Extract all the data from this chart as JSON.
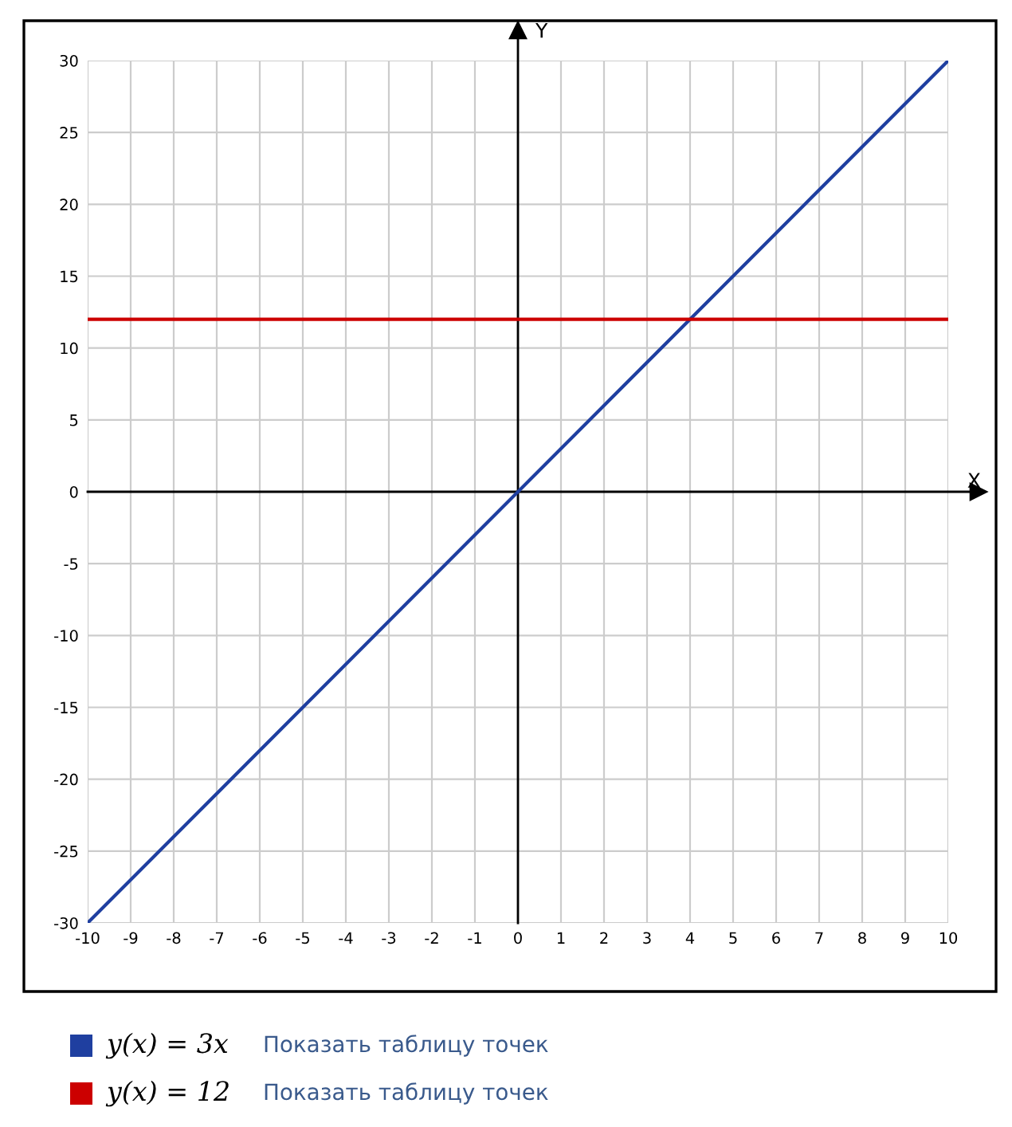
{
  "chart_data": {
    "type": "line",
    "xlabel": "X",
    "ylabel": "Y",
    "xlim": [
      -10,
      10
    ],
    "ylim": [
      -30,
      30
    ],
    "xticks": [
      -10,
      -9,
      -8,
      -7,
      -6,
      -5,
      -4,
      -3,
      -2,
      -1,
      0,
      1,
      2,
      3,
      4,
      5,
      6,
      7,
      8,
      9,
      10
    ],
    "yticks": [
      -30,
      -25,
      -20,
      -15,
      -10,
      -5,
      0,
      5,
      10,
      15,
      20,
      25,
      30
    ],
    "x": [
      -10,
      10
    ],
    "grid": true,
    "legend": "bottom",
    "marker": "none",
    "line_style": "solid",
    "series": [
      {
        "name": "y(x) = 3x",
        "color": "#1f3fa0",
        "values": [
          -30,
          30
        ]
      },
      {
        "name": "y(x) = 12",
        "color": "#cc0000",
        "values": [
          12,
          12
        ]
      }
    ],
    "annotations": [
      "Показать таблицу точек",
      "Показать таблицу точек"
    ]
  }
}
